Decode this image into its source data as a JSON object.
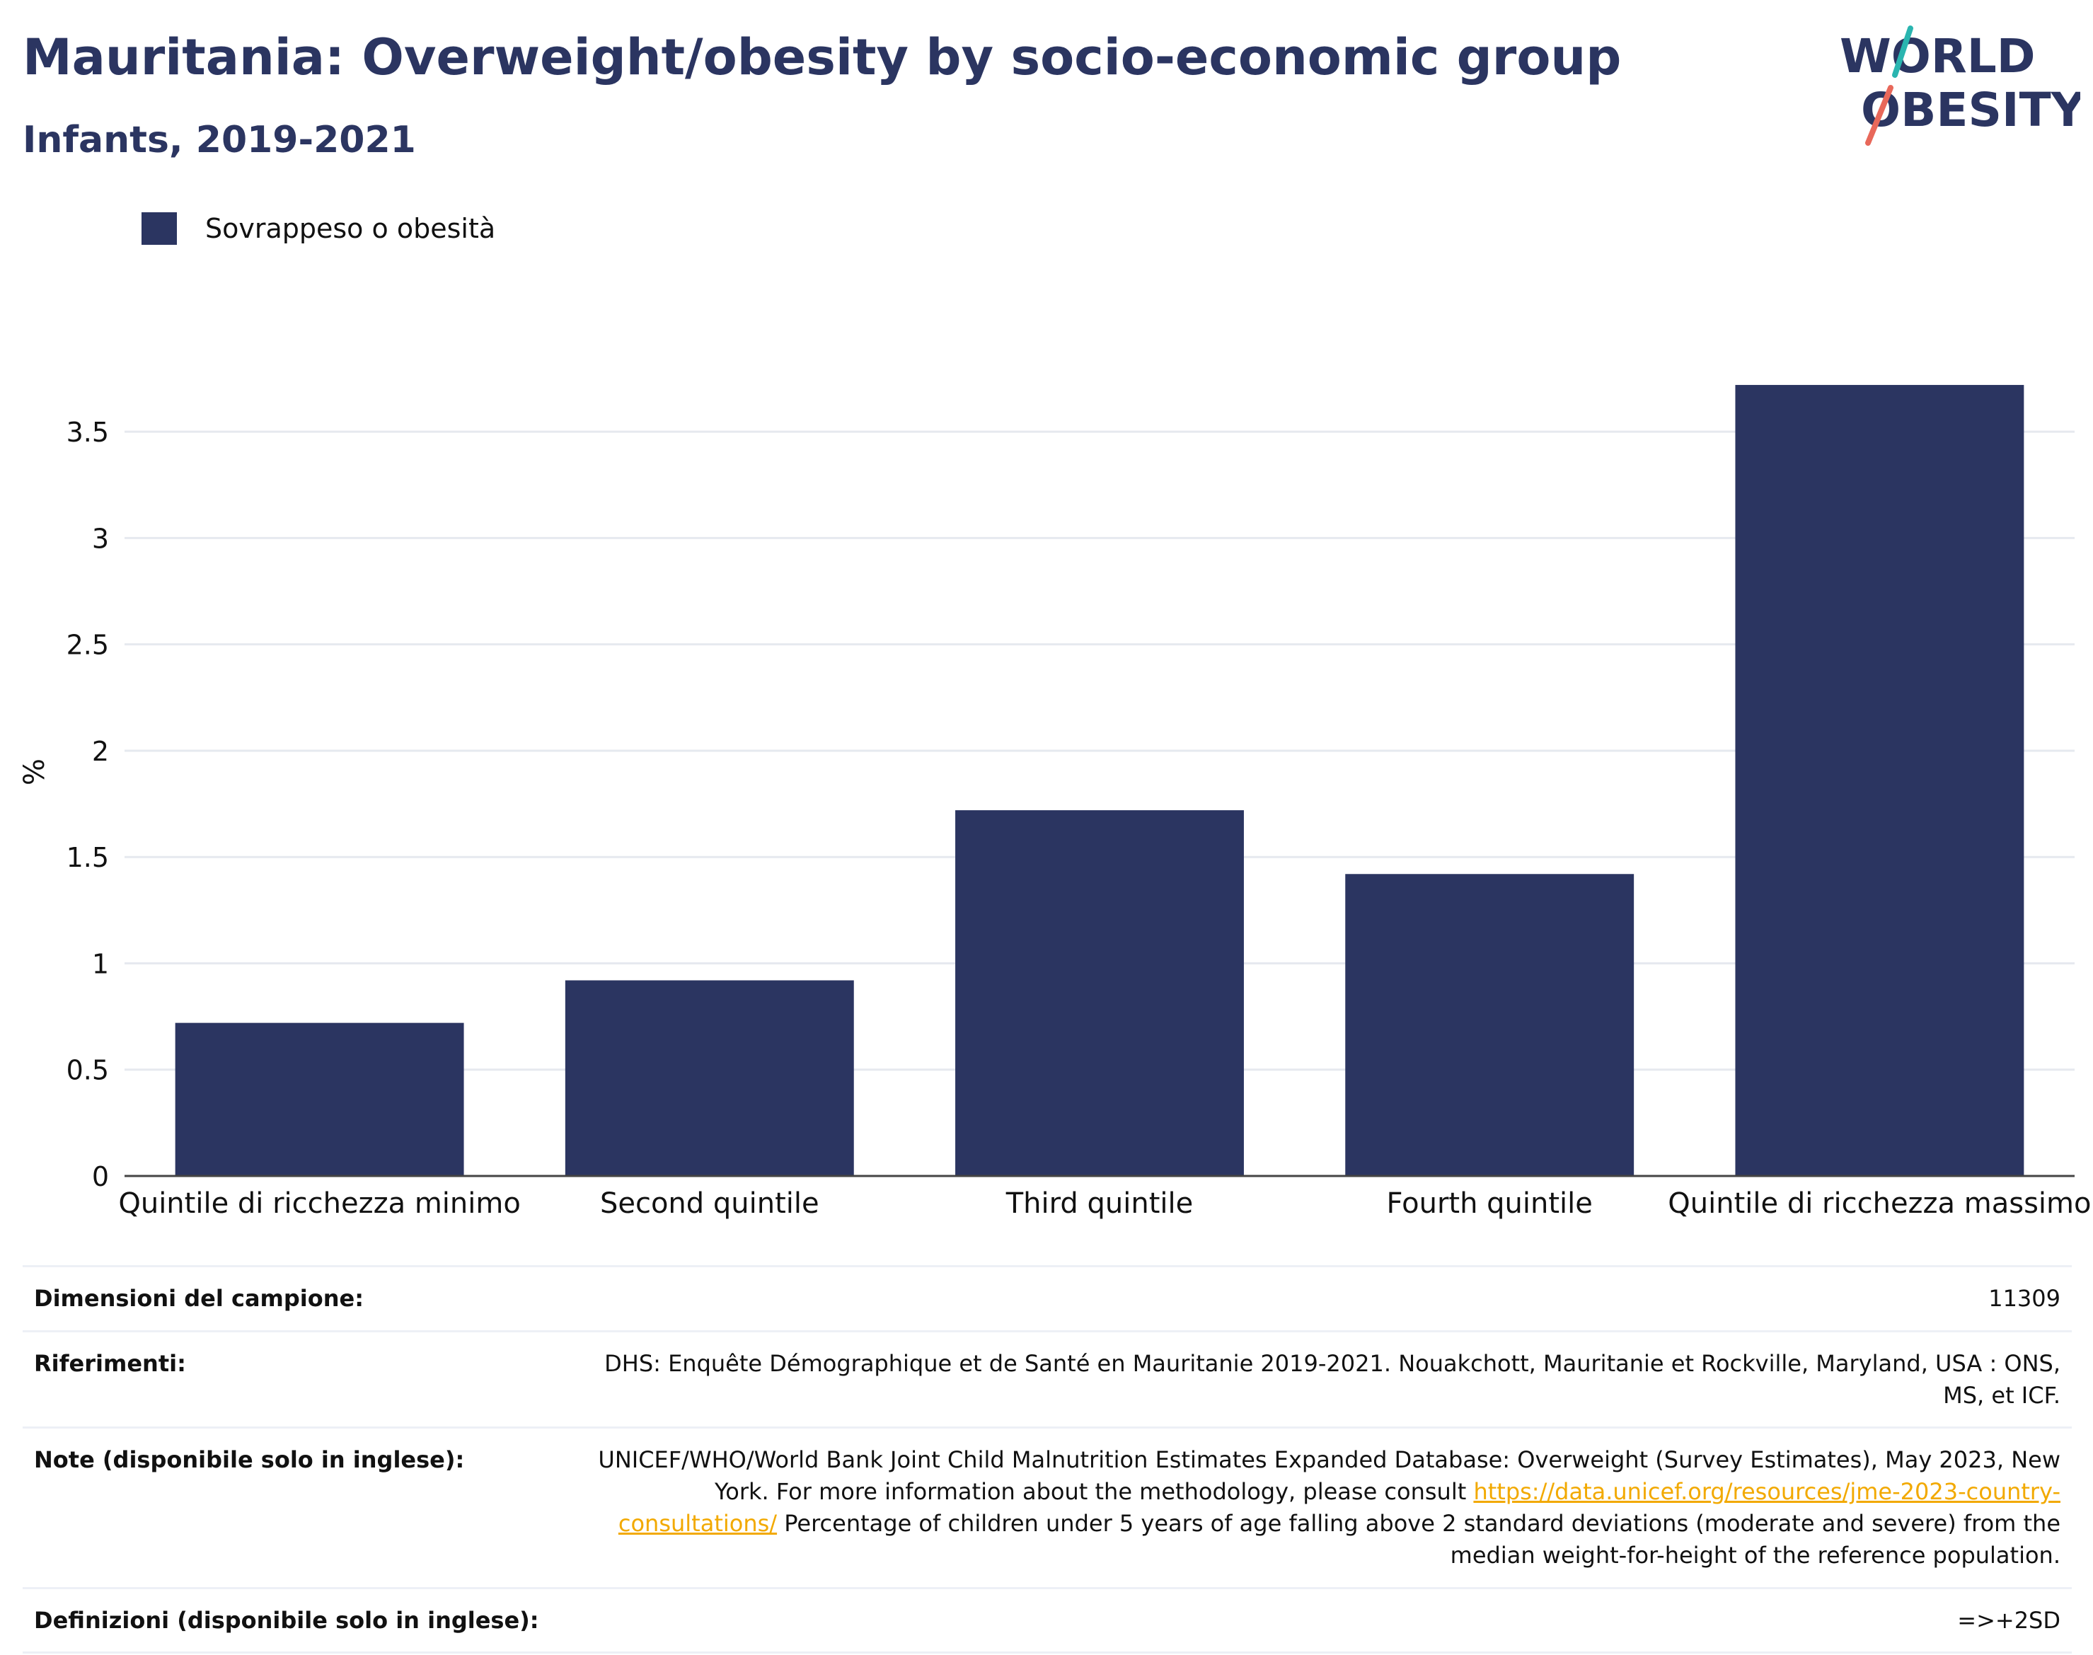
{
  "header": {
    "title": "Mauritania: Overweight/obesity by socio-economic group",
    "subtitle": "Infants, 2019-2021"
  },
  "logo": {
    "line1": "WORLD",
    "line2": "OBESITY",
    "colors": {
      "text": "#2b3561",
      "slash_top": "#2ab5b0",
      "slash_bottom": "#e8685a"
    }
  },
  "legend": {
    "label": "Sovrappeso o obesità",
    "color": "#2b3561"
  },
  "chart_data": {
    "type": "bar",
    "categories": [
      "Quintile di ricchezza minimo",
      "Second quintile",
      "Third quintile",
      "Fourth quintile",
      "Quintile di ricchezza massimo"
    ],
    "series": [
      {
        "name": "Sovrappeso o obesità",
        "values": [
          0.72,
          0.92,
          1.72,
          1.42,
          3.72
        ],
        "color": "#2b3561"
      }
    ],
    "ylabel": "%",
    "ylim": [
      0,
      3.8
    ],
    "yticks": [
      0,
      0.5,
      1,
      1.5,
      2,
      2.5,
      3,
      3.5
    ],
    "ytick_labels": [
      "0",
      "0.5",
      "1",
      "1.5",
      "2",
      "2.5",
      "3",
      "3.5"
    ],
    "grid": true,
    "legend_position": "top-left"
  },
  "info": {
    "sample_label": "Dimensioni del campione:",
    "sample_value": "11309",
    "refs_label": "Riferimenti:",
    "refs_value": "DHS: Enquête Démographique et de Santé en Mauritanie 2019-2021. Nouakchott, Mauritanie et Rockville, Maryland, USA : ONS, MS, et ICF.",
    "notes_label": "Note (disponibile solo in inglese):",
    "notes_text1": "UNICEF/WHO/World Bank Joint Child Malnutrition Estimates Expanded Database: Overweight (Survey Estimates), May 2023, New York. For more information about the methodology, please consult ",
    "notes_link": "https://data.unicef.org/resources/jme-2023-country-consultations/",
    "notes_text2": " Percentage of children under 5 years of age falling above 2 standard deviations (moderate and severe) from the median weight-for-height of the reference population.",
    "defs_label": "Definizioni (disponibile solo in inglese):",
    "defs_value": "=>+2SD"
  }
}
